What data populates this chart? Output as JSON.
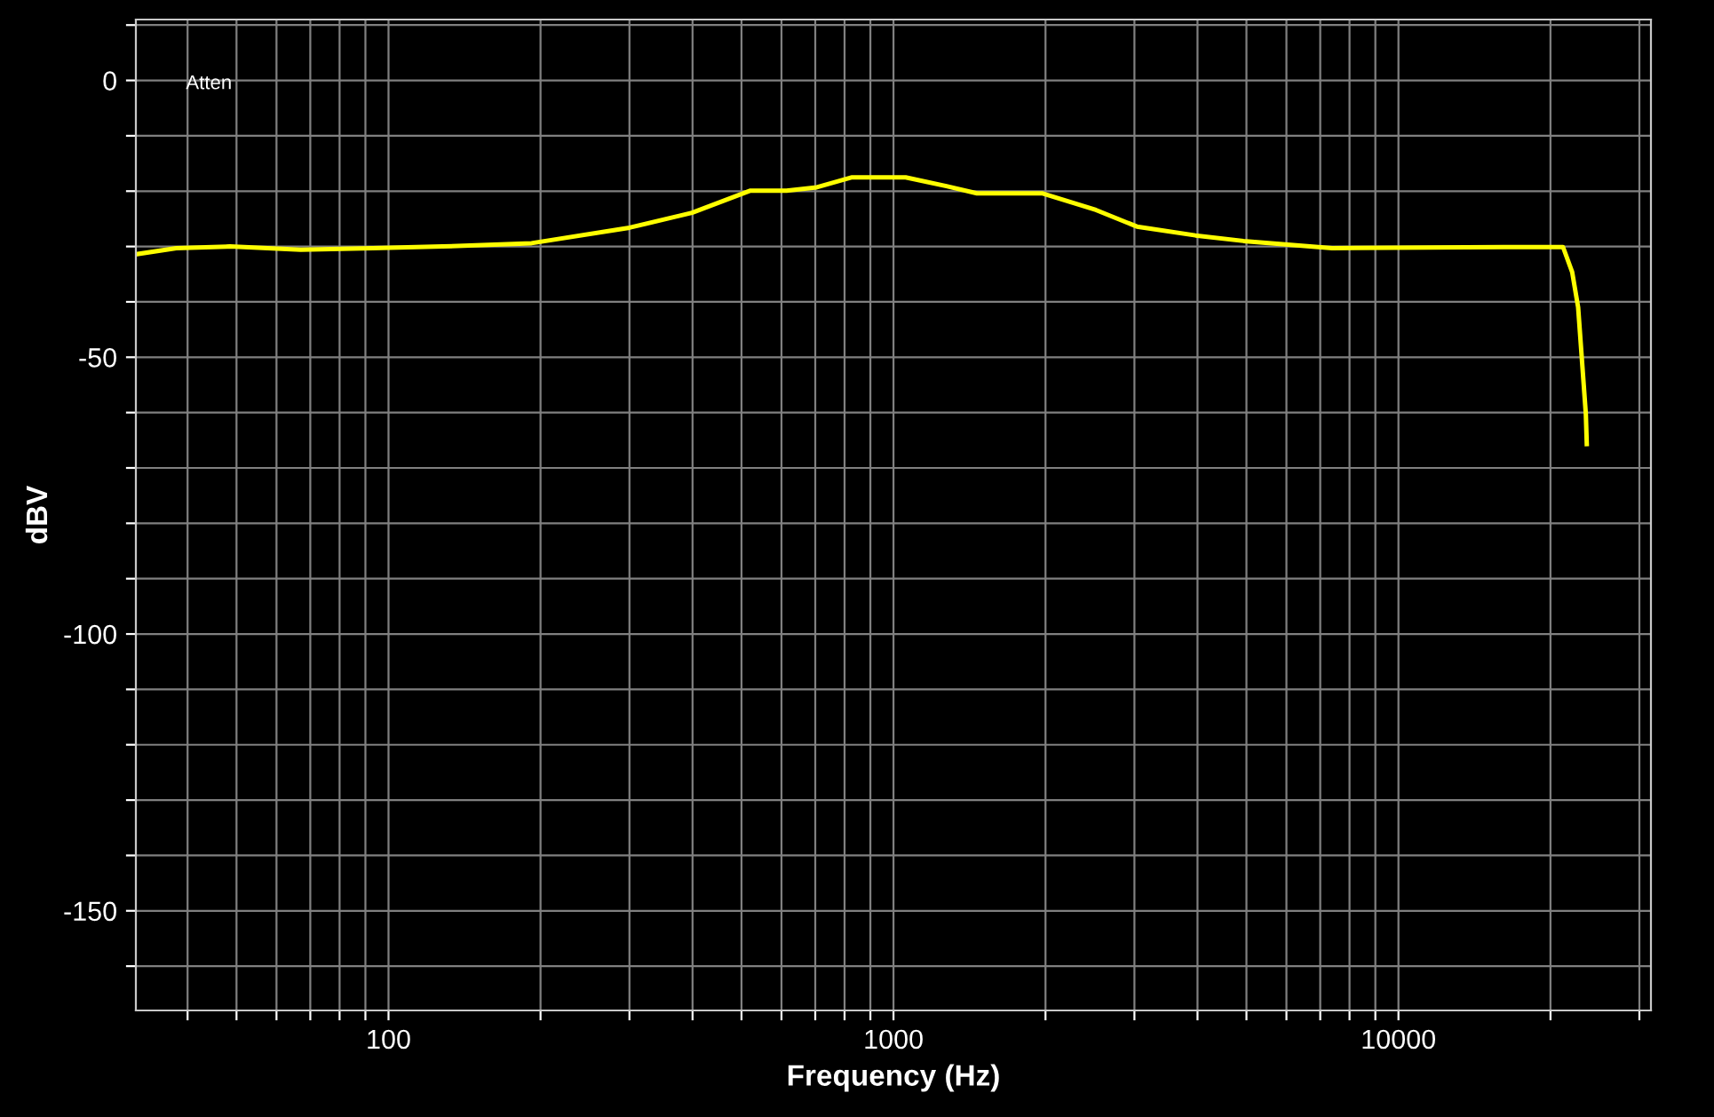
{
  "chart_data": {
    "type": "line",
    "xlabel": "Frequency (Hz)",
    "ylabel": "dBV",
    "annotations": [
      "Atten"
    ],
    "log": "x",
    "grid": true,
    "marker": "none",
    "line_style": "solid",
    "xlim": [
      31.6,
      31623
    ],
    "ylim": [
      -168,
      11
    ],
    "xticks": [
      {
        "value": 40,
        "label": null
      },
      {
        "value": 50,
        "label": null
      },
      {
        "value": 60,
        "label": null
      },
      {
        "value": 70,
        "label": null
      },
      {
        "value": 80,
        "label": null
      },
      {
        "value": 90,
        "label": null
      },
      100,
      {
        "value": 200,
        "label": null
      },
      {
        "value": 300,
        "label": null
      },
      {
        "value": 400,
        "label": null
      },
      {
        "value": 500,
        "label": null
      },
      {
        "value": 600,
        "label": null
      },
      {
        "value": 700,
        "label": null
      },
      {
        "value": 800,
        "label": null
      },
      {
        "value": 900,
        "label": null
      },
      1000,
      {
        "value": 2000,
        "label": null
      },
      {
        "value": 3000,
        "label": null
      },
      {
        "value": 4000,
        "label": null
      },
      {
        "value": 5000,
        "label": null
      },
      {
        "value": 6000,
        "label": null
      },
      {
        "value": 7000,
        "label": null
      },
      {
        "value": 8000,
        "label": null
      },
      {
        "value": 9000,
        "label": null
      },
      10000,
      {
        "value": 20000,
        "label": null
      },
      {
        "value": 30000,
        "label": null
      }
    ],
    "yticks": [
      {
        "value": -160,
        "label": null
      },
      -150,
      {
        "value": -140,
        "label": null
      },
      {
        "value": -130,
        "label": null
      },
      {
        "value": -120,
        "label": null
      },
      {
        "value": -110,
        "label": null
      },
      -100,
      {
        "value": -90,
        "label": null
      },
      {
        "value": -80,
        "label": null
      },
      {
        "value": -70,
        "label": null
      },
      {
        "value": -60,
        "label": null
      },
      -50,
      {
        "value": -40,
        "label": null
      },
      {
        "value": -30,
        "label": null
      },
      {
        "value": -20,
        "label": null
      },
      {
        "value": -10,
        "label": null
      },
      0,
      {
        "value": 10,
        "label": null
      }
    ],
    "series": [
      {
        "color": "#ffff00",
        "x": [
          31.6,
          38,
          48.5,
          67,
          93,
          128,
          192,
          300,
          399,
          521,
          614,
          705,
          828,
          1057,
          1273,
          1463,
          1974,
          2517,
          3034,
          3963,
          4933,
          7390,
          16180,
          21180,
          22080,
          22690,
          23140,
          23500,
          23600
        ],
        "values": [
          -31.4,
          -30.3,
          -30.0,
          -30.6,
          -30.3,
          -30.0,
          -29.4,
          -26.6,
          -23.9,
          -19.9,
          -19.9,
          -19.3,
          -17.5,
          -17.5,
          -19.1,
          -20.4,
          -20.4,
          -23.4,
          -26.4,
          -28.0,
          -29.0,
          -30.3,
          -30.1,
          -30.1,
          -34.6,
          -41.0,
          -51.8,
          -60.3,
          -65.7
        ]
      }
    ]
  }
}
